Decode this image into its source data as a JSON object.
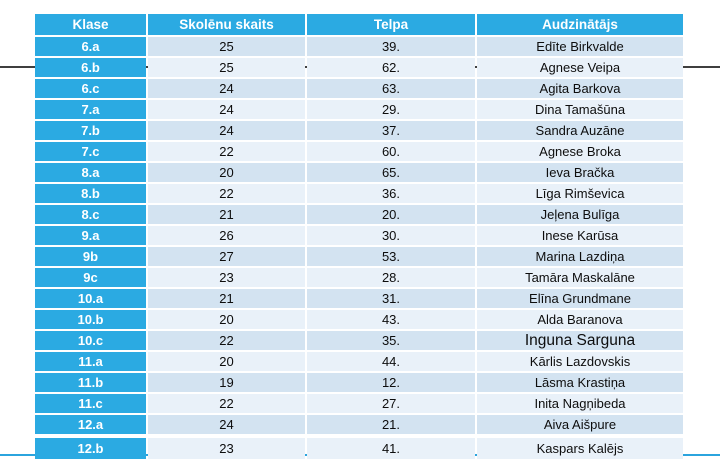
{
  "decorations": {
    "top_line_color": "#3f3f3f",
    "bottom_line_color": "#2ba4de"
  },
  "table": {
    "header": {
      "labels": [
        "Klase",
        "Skolēnu skaits",
        "Telpa",
        "Audzinātājs"
      ]
    },
    "colors": {
      "header_bg": "#2baae2",
      "klase_column_bg": "#2baae2",
      "row_odd_bg": "#d3e3f1",
      "row_even_bg": "#e9f1f9",
      "header_text": "#ffffff",
      "body_text": "#0d0d0d"
    },
    "rows": [
      {
        "klase": "6.a",
        "skaits": "25",
        "telpa": "39.",
        "audzinatajs": "Edīte Birkvalde"
      },
      {
        "klase": "6.b",
        "skaits": "25",
        "telpa": "62.",
        "audzinatajs": "Agnese Veipa"
      },
      {
        "klase": "6.c",
        "skaits": "24",
        "telpa": "63.",
        "audzinatajs": "Agita Barkova"
      },
      {
        "klase": "7.a",
        "skaits": "24",
        "telpa": "29.",
        "audzinatajs": "Dina Tamašūna"
      },
      {
        "klase": "7.b",
        "skaits": "24",
        "telpa": "37.",
        "audzinatajs": "Sandra Auzāne"
      },
      {
        "klase": "7.c",
        "skaits": "22",
        "telpa": "60.",
        "audzinatajs": "Agnese Broka"
      },
      {
        "klase": "8.a",
        "skaits": "20",
        "telpa": "65.",
        "audzinatajs": "Ieva Bračka"
      },
      {
        "klase": "8.b",
        "skaits": "22",
        "telpa": "36.",
        "audzinatajs": "Līga Rimševica"
      },
      {
        "klase": "8.c",
        "skaits": "21",
        "telpa": "20.",
        "audzinatajs": "Jeļena Bulīga"
      },
      {
        "klase": "9.a",
        "skaits": "26",
        "telpa": "30.",
        "audzinatajs": "Inese Karūsa"
      },
      {
        "klase": "9b",
        "skaits": "27",
        "telpa": "53.",
        "audzinatajs": "Marina Lazdiņa"
      },
      {
        "klase": "9c",
        "skaits": "23",
        "telpa": "28.",
        "audzinatajs": "Tamāra Maskalāne"
      },
      {
        "klase": "10.a",
        "skaits": "21",
        "telpa": "31.",
        "audzinatajs": "Elīna Grundmane"
      },
      {
        "klase": "10.b",
        "skaits": "20",
        "telpa": "43.",
        "audzinatajs": "Alda Baranova"
      },
      {
        "klase": "10.c",
        "skaits": "22",
        "telpa": "35.",
        "audzinatajs": "Inguna Sarguna",
        "large_name": true
      },
      {
        "klase": "11.a",
        "skaits": "20",
        "telpa": "44.",
        "audzinatajs": "Kārlis Lazdovskis"
      },
      {
        "klase": "11.b",
        "skaits": "19",
        "telpa": "12.",
        "audzinatajs": "Lāsma Krastiņa"
      },
      {
        "klase": "11.c",
        "skaits": "22",
        "telpa": "27.",
        "audzinatajs": "Inita Nagņibeda"
      },
      {
        "klase": "12.a",
        "skaits": "24",
        "telpa": "21.",
        "audzinatajs": "Aiva Aišpure"
      },
      {
        "klase": "12.b",
        "skaits": "23",
        "telpa": "41.",
        "audzinatajs": "Kaspars Kalējs",
        "separated": true
      }
    ]
  }
}
